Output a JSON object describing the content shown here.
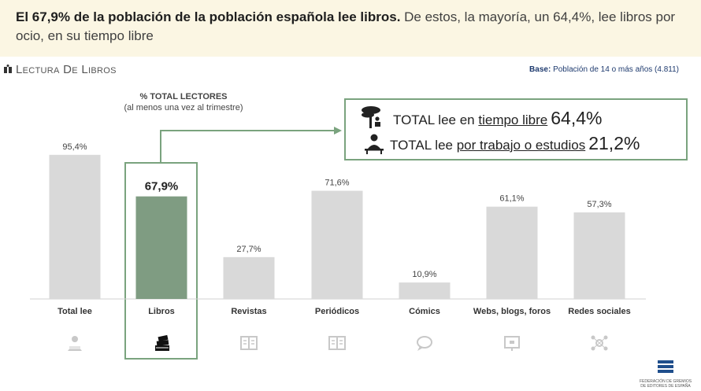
{
  "header": {
    "headline_bold": "El 67,9% de la población de la población española lee libros.",
    "headline_rest": " De estos, la mayoría, un 64,4%, lee libros por ocio, en su tiempo libre"
  },
  "section_title": "Lectura De Libros",
  "base": {
    "label": "Base:",
    "text": "Población de 14 o más años (4.811)"
  },
  "subtitle": {
    "line1": "% TOTAL LECTORES",
    "line2": "(al menos una vez al trimestre)"
  },
  "callout": {
    "row1": {
      "prefix": "TOTAL lee en ",
      "underlined": "tiempo libre",
      "value": "64,4%"
    },
    "row2": {
      "prefix": "TOTAL lee ",
      "underlined": "por trabajo o estudios",
      "value": "21,2%"
    }
  },
  "chart_data": {
    "type": "bar",
    "title": "% TOTAL LECTORES",
    "categories": [
      "Total lee",
      "Libros",
      "Revistas",
      "Periódicos",
      "Cómics",
      "Webs, blogs, foros",
      "Redes sociales"
    ],
    "values": [
      95.4,
      67.9,
      27.7,
      71.6,
      10.9,
      61.1,
      57.3
    ],
    "value_labels": [
      "95,4%",
      "67,9%",
      "27,7%",
      "71,6%",
      "10,9%",
      "61,1%",
      "57,3%"
    ],
    "highlight_index": 1,
    "ylim": [
      0,
      100
    ],
    "grid": false,
    "colors": {
      "bar": "#d9d9d9",
      "highlight": "#7f9c82",
      "frame": "#7aa37e"
    },
    "icons": [
      "reader-icon",
      "books-icon",
      "magazine-icon",
      "newspaper-icon",
      "speech-bubble-icon",
      "web-screen-icon",
      "social-network-icon"
    ]
  },
  "logo": {
    "line1": "FEDERACIÓN DE GREMIOS",
    "line2": "DE EDITORES DE ESPAÑA"
  }
}
